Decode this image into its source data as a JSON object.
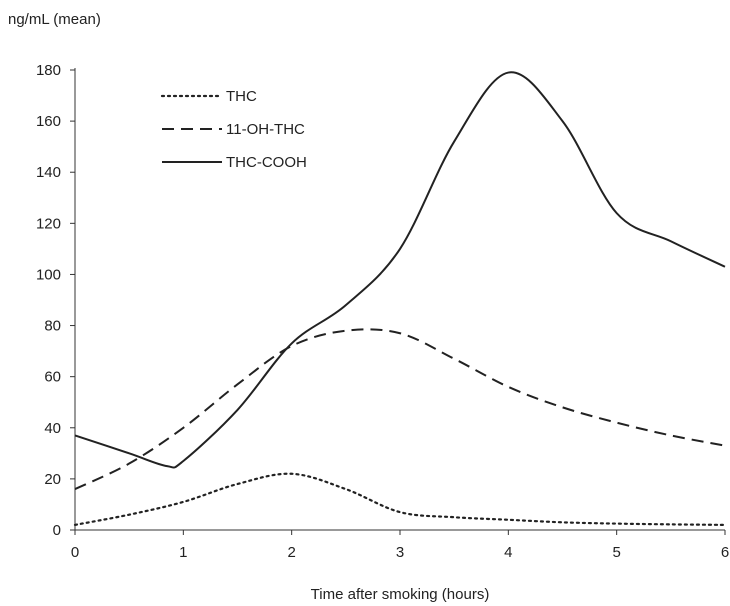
{
  "chart_data": {
    "type": "line",
    "title": "",
    "xlabel": "Time after smoking (hours)",
    "ylabel": "ng/mL (mean)",
    "xlim": [
      0,
      6
    ],
    "ylim": [
      0,
      180
    ],
    "xticks": [
      "0",
      "1",
      "2",
      "3",
      "4",
      "5",
      "6"
    ],
    "yticks": [
      "0",
      "20",
      "40",
      "60",
      "80",
      "100",
      "120",
      "140",
      "160",
      "180"
    ],
    "grid": false,
    "legend_position": "top-left",
    "series": [
      {
        "name": "THC",
        "line_style": "dotted",
        "color": "#222222",
        "x": [
          0,
          0.5,
          1,
          1.5,
          2,
          2.5,
          3,
          3.5,
          4,
          4.5,
          5,
          5.5,
          6
        ],
        "y": [
          2,
          6,
          11,
          18,
          22,
          16,
          7,
          5,
          4,
          3,
          2.5,
          2.2,
          2
        ]
      },
      {
        "name": "11-OH-THC",
        "line_style": "dashed",
        "color": "#222222",
        "x": [
          0,
          0.5,
          1,
          1.5,
          2,
          2.5,
          3,
          3.5,
          4,
          4.5,
          5,
          5.5,
          6
        ],
        "y": [
          16,
          26,
          40,
          57,
          72,
          78,
          77,
          67,
          56,
          48,
          42,
          37,
          33
        ]
      },
      {
        "name": "THC-COOH",
        "line_style": "solid",
        "color": "#222222",
        "x": [
          0,
          0.5,
          0.85,
          1,
          1.5,
          2,
          2.5,
          3,
          3.5,
          4,
          4.5,
          5,
          5.5,
          6
        ],
        "y": [
          37,
          30,
          25,
          27,
          47,
          73,
          88,
          110,
          152,
          179,
          160,
          124,
          113,
          103
        ]
      }
    ]
  }
}
